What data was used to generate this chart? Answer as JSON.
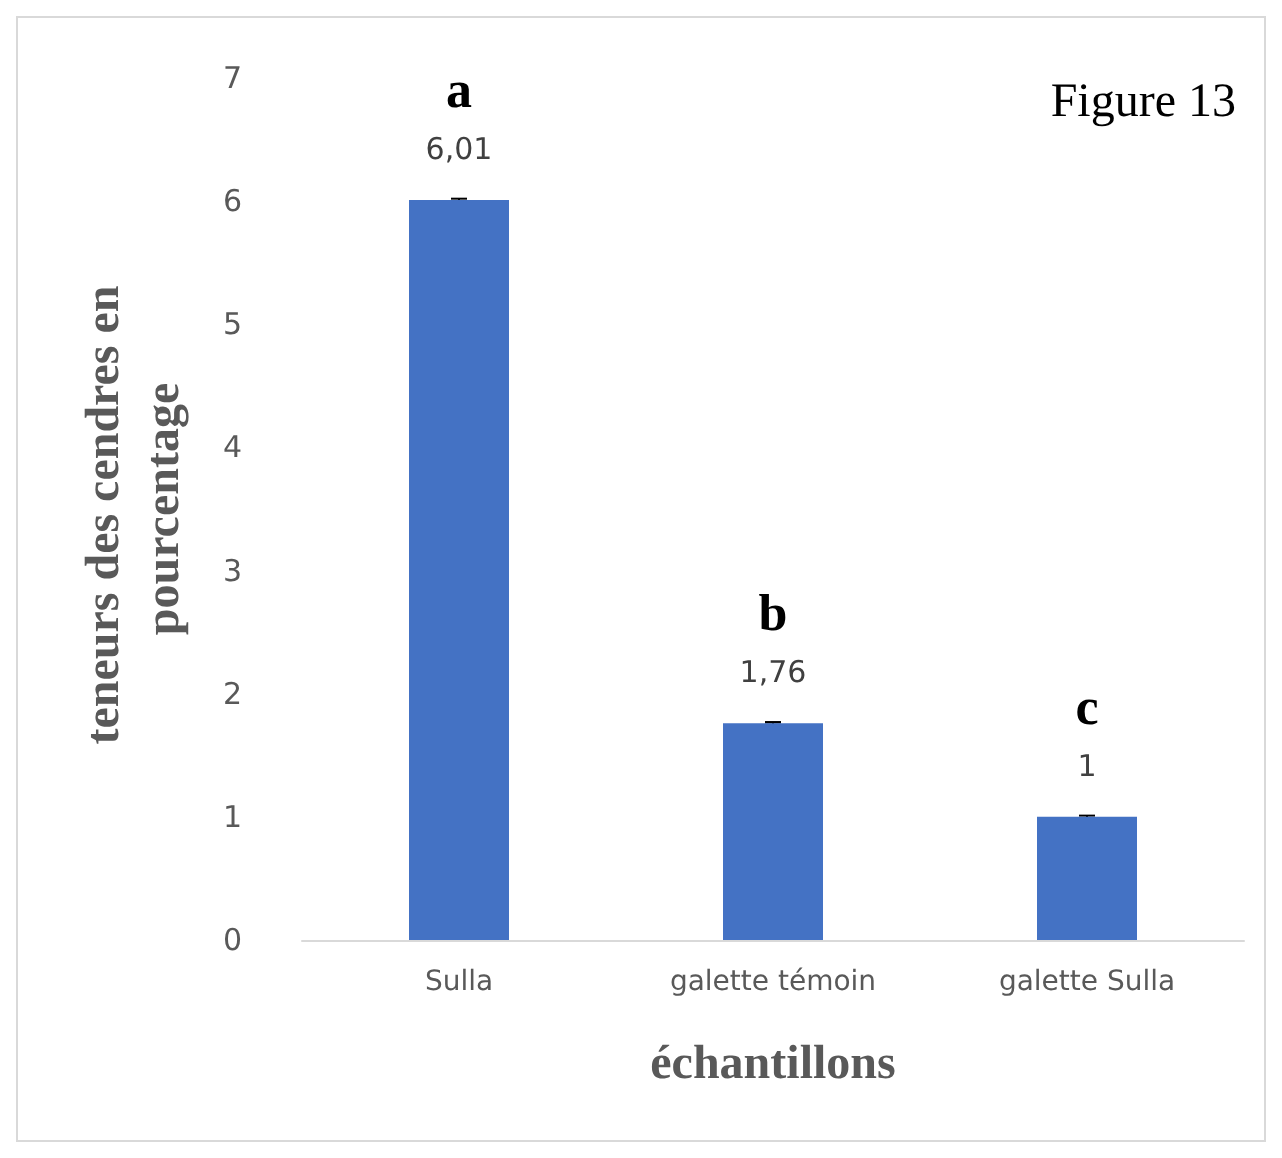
{
  "chart_data": {
    "type": "bar",
    "xlabel": "échantillons",
    "ylabel": "teneurs des cendres en pourcentage",
    "categories": [
      "Sulla",
      "galette témoin",
      "galette Sulla"
    ],
    "values": [
      6.01,
      1.76,
      1
    ],
    "value_labels": [
      "6,01",
      "1,76",
      "1"
    ],
    "errors": [
      0.01,
      0.01,
      0.01
    ],
    "color": "#4472c4",
    "ylim": [
      0,
      7
    ],
    "yticks": [
      0,
      1,
      2,
      3,
      4,
      5,
      6,
      7
    ],
    "grid": false,
    "annotations": [
      "Figure 13",
      "a",
      "b",
      "c"
    ]
  }
}
